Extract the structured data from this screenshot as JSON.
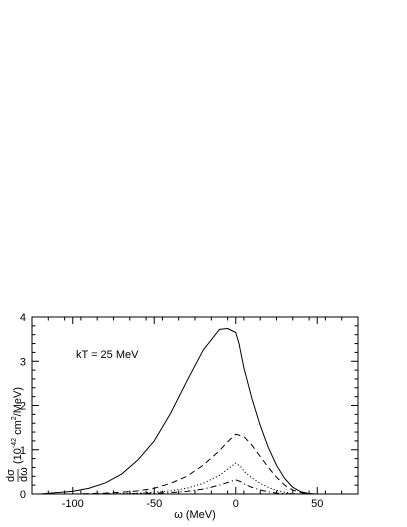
{
  "chart_data": {
    "type": "line",
    "xlabel": "ω (MeV)",
    "ylabel_main": "(10",
    "ylabel_exp": "-42",
    "ylabel_rest": " cm",
    "ylabel_exp2": "2",
    "ylabel_tail": "/MeV)",
    "ylabel_frac_num": "dσ",
    "ylabel_frac_den": "dω",
    "annotation": "kT = 25 MeV",
    "xlim": [
      -125,
      75
    ],
    "ylim": [
      0,
      4
    ],
    "x_ticks": [
      -100,
      -50,
      0,
      50
    ],
    "x_tick_labels": [
      "-100",
      "-50",
      "0",
      "50"
    ],
    "y_ticks": [
      0,
      1,
      2,
      3,
      4
    ],
    "y_tick_labels": [
      "0",
      "1",
      "2",
      "3",
      "4"
    ],
    "series": [
      {
        "style": "solid",
        "x": [
          -120,
          -110,
          -100,
          -90,
          -80,
          -70,
          -60,
          -50,
          -40,
          -30,
          -20,
          -10,
          -5,
          0,
          2,
          5,
          10,
          15,
          20,
          25,
          30,
          35,
          40,
          45,
          50
        ],
        "y": [
          0.0,
          0.03,
          0.06,
          0.13,
          0.25,
          0.45,
          0.77,
          1.2,
          1.82,
          2.55,
          3.25,
          3.72,
          3.74,
          3.65,
          3.4,
          2.85,
          2.15,
          1.55,
          1.05,
          0.65,
          0.35,
          0.15,
          0.05,
          0.01,
          0.0
        ]
      },
      {
        "style": "dashed",
        "x": [
          -100,
          -90,
          -80,
          -70,
          -60,
          -50,
          -40,
          -30,
          -20,
          -10,
          -5,
          0,
          5,
          10,
          15,
          20,
          25,
          30,
          35,
          40,
          45
        ],
        "y": [
          0.0,
          0.01,
          0.02,
          0.04,
          0.07,
          0.13,
          0.24,
          0.4,
          0.65,
          0.98,
          1.18,
          1.35,
          1.3,
          1.1,
          0.85,
          0.6,
          0.38,
          0.2,
          0.09,
          0.03,
          0.0
        ]
      },
      {
        "style": "dotted",
        "x": [
          -90,
          -80,
          -70,
          -60,
          -50,
          -40,
          -30,
          -20,
          -10,
          -5,
          0,
          3,
          6,
          10,
          15,
          20,
          25,
          30,
          35,
          40
        ],
        "y": [
          0.0,
          0.01,
          0.01,
          0.02,
          0.04,
          0.07,
          0.13,
          0.24,
          0.42,
          0.56,
          0.7,
          0.62,
          0.48,
          0.36,
          0.24,
          0.15,
          0.08,
          0.04,
          0.01,
          0.0
        ]
      },
      {
        "style": "dashdot",
        "x": [
          -80,
          -70,
          -60,
          -50,
          -40,
          -30,
          -20,
          -10,
          -5,
          0,
          3,
          6,
          10,
          15,
          20,
          25,
          30,
          35
        ],
        "y": [
          0.0,
          0.0,
          0.01,
          0.02,
          0.03,
          0.06,
          0.11,
          0.2,
          0.26,
          0.32,
          0.28,
          0.21,
          0.15,
          0.09,
          0.05,
          0.02,
          0.01,
          0.0
        ]
      }
    ]
  }
}
